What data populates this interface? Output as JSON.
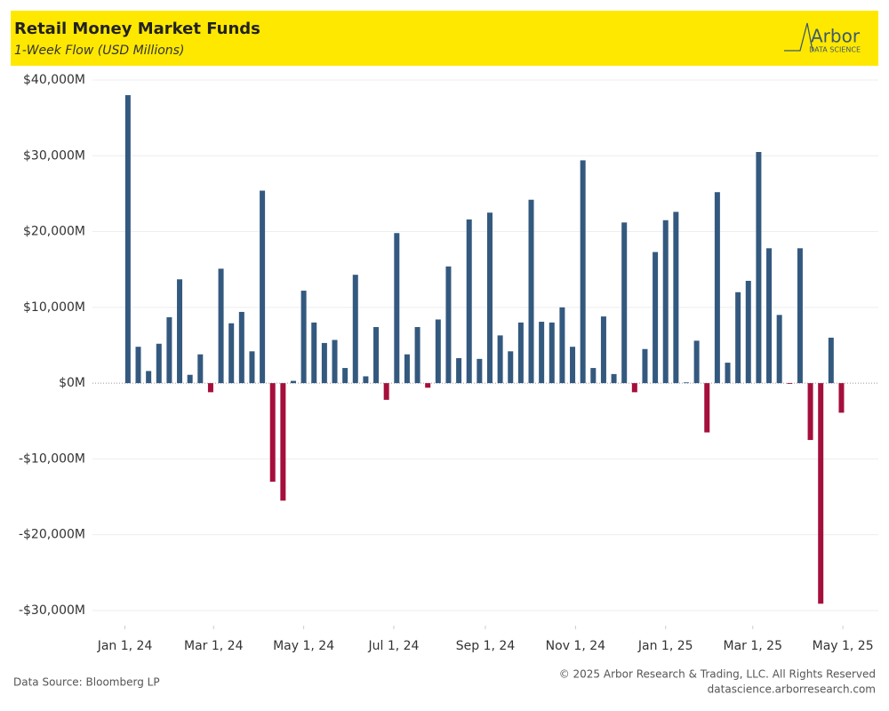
{
  "chart_data": {
    "type": "bar",
    "title": "Retail Money Market Funds",
    "subtitle": "1-Week Flow (USD Millions)",
    "logo": {
      "name": "Arbor",
      "tagline": "DATA SCIENCE"
    },
    "source": "Data Source: Bloomberg LP",
    "copyright": "© 2025 Arbor Research & Trading, LLC. All Rights Reserved",
    "website": "datascience.arborresearch.com",
    "x": [
      "2024-01-03",
      "2024-01-10",
      "2024-01-17",
      "2024-01-24",
      "2024-01-31",
      "2024-02-07",
      "2024-02-14",
      "2024-02-21",
      "2024-02-28",
      "2024-03-06",
      "2024-03-13",
      "2024-03-20",
      "2024-03-27",
      "2024-04-03",
      "2024-04-10",
      "2024-04-17",
      "2024-04-24",
      "2024-05-01",
      "2024-05-08",
      "2024-05-15",
      "2024-05-22",
      "2024-05-29",
      "2024-06-05",
      "2024-06-12",
      "2024-06-19",
      "2024-06-26",
      "2024-07-03",
      "2024-07-10",
      "2024-07-17",
      "2024-07-24",
      "2024-07-31",
      "2024-08-07",
      "2024-08-14",
      "2024-08-21",
      "2024-08-28",
      "2024-09-04",
      "2024-09-11",
      "2024-09-18",
      "2024-09-25",
      "2024-10-02",
      "2024-10-09",
      "2024-10-16",
      "2024-10-23",
      "2024-10-30",
      "2024-11-06",
      "2024-11-13",
      "2024-11-20",
      "2024-11-27",
      "2024-12-04",
      "2024-12-11",
      "2024-12-18",
      "2024-12-25",
      "2025-01-01",
      "2025-01-08",
      "2025-01-15",
      "2025-01-22",
      "2025-01-29",
      "2025-02-05",
      "2025-02-12",
      "2025-02-19",
      "2025-02-26",
      "2025-03-05",
      "2025-03-12",
      "2025-03-19",
      "2025-03-26",
      "2025-04-02",
      "2025-04-09",
      "2025-04-16",
      "2025-04-23",
      "2025-04-30"
    ],
    "series": [
      {
        "name": "1-Week Flow",
        "color": "#34597f",
        "negative_color": "#a50f3c",
        "values": [
          38000,
          4800,
          1600,
          5200,
          8700,
          13700,
          1100,
          3800,
          -1200,
          15100,
          7900,
          9400,
          4200,
          25400,
          -13000,
          -15500,
          300,
          12200,
          8000,
          5300,
          5700,
          2000,
          14300,
          900,
          7400,
          -2200,
          19800,
          3800,
          7400,
          -600,
          8400,
          15400,
          3300,
          21600,
          3200,
          22500,
          6300,
          4200,
          8000,
          24200,
          8100,
          8000,
          10000,
          4800,
          29400,
          2000,
          8800,
          1200,
          21200,
          -1200,
          4500,
          17300,
          21500,
          22600,
          100,
          5600,
          -6500,
          25200,
          2700,
          12000,
          13500,
          30500,
          17800,
          9000,
          -100,
          17800,
          -7500,
          -29100,
          6000,
          -3900
        ]
      }
    ],
    "xlim": [
      "2023-12-10",
      "2025-05-25"
    ],
    "xticks": [
      {
        "value": "2024-01-01",
        "label": "Jan 1, 24"
      },
      {
        "value": "2024-03-01",
        "label": "Mar 1, 24"
      },
      {
        "value": "2024-05-01",
        "label": "May 1, 24"
      },
      {
        "value": "2024-07-01",
        "label": "Jul 1, 24"
      },
      {
        "value": "2024-09-01",
        "label": "Sep 1, 24"
      },
      {
        "value": "2024-11-01",
        "label": "Nov 1, 24"
      },
      {
        "value": "2025-01-01",
        "label": "Jan 1, 25"
      },
      {
        "value": "2025-03-01",
        "label": "Mar 1, 25"
      },
      {
        "value": "2025-05-01",
        "label": "May 1, 25"
      }
    ],
    "ylim": [
      -32000,
      40000
    ],
    "yticks": [
      {
        "value": 40000,
        "label": "$40,000M"
      },
      {
        "value": 30000,
        "label": "$30,000M"
      },
      {
        "value": 20000,
        "label": "$20,000M"
      },
      {
        "value": 10000,
        "label": "$10,000M"
      },
      {
        "value": 0,
        "label": "$0M"
      },
      {
        "value": -10000,
        "label": "-$10,000M"
      },
      {
        "value": -20000,
        "label": "-$20,000M"
      },
      {
        "value": -30000,
        "label": "-$30,000M"
      }
    ],
    "grid": true
  }
}
